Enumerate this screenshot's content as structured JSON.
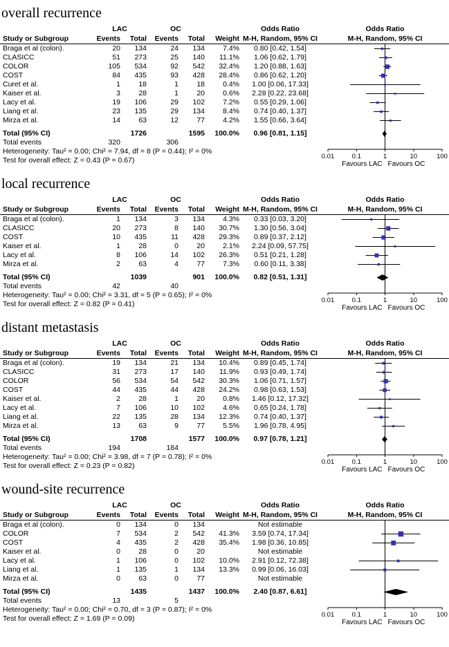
{
  "chart_data": {
    "type": "forest",
    "marker_color": "#3333b2",
    "summary_color": "#000000",
    "labels": {
      "study_or_subgroup": "Study or Subgroup",
      "events": "Events",
      "total": "Total",
      "weight": "Weight",
      "odds_ratio": "Odds Ratio",
      "mh": "M-H, Random, 95% CI",
      "group1": "LAC",
      "group2": "OC",
      "total_ci": "Total (95% CI)",
      "total_events": "Total events"
    },
    "axis": {
      "scale": "log",
      "min": 0.01,
      "max": 100,
      "ticks": [
        "0.01",
        "0.1",
        "1",
        "10",
        "100"
      ],
      "favours_left": "Favours LAC",
      "favours_right": "Favours OC"
    },
    "sections": [
      {
        "title": "overall recurrence",
        "studies": [
          {
            "name": "Braga et al (colon).",
            "e1": 20,
            "t1": 134,
            "e2": 24,
            "t2": 134,
            "weight": "7.4%",
            "ci_text": "0.80 [0.42, 1.54]",
            "or": 0.8,
            "lo": 0.42,
            "hi": 1.54
          },
          {
            "name": "CLASICC",
            "e1": 51,
            "t1": 273,
            "e2": 25,
            "t2": 140,
            "weight": "11.1%",
            "ci_text": "1.06 [0.62, 1.79]",
            "or": 1.06,
            "lo": 0.62,
            "hi": 1.79
          },
          {
            "name": "COLOR",
            "e1": 105,
            "t1": 534,
            "e2": 92,
            "t2": 542,
            "weight": "32.4%",
            "ci_text": "1.20 [0.88, 1.63]",
            "or": 1.2,
            "lo": 0.88,
            "hi": 1.63
          },
          {
            "name": "COST",
            "e1": 84,
            "t1": 435,
            "e2": 93,
            "t2": 428,
            "weight": "28.4%",
            "ci_text": "0.86 [0.62, 1.20]",
            "or": 0.86,
            "lo": 0.62,
            "hi": 1.2
          },
          {
            "name": "Curet et al.",
            "e1": 1,
            "t1": 18,
            "e2": 1,
            "t2": 18,
            "weight": "0.4%",
            "ci_text": "1.00 [0.06, 17.33]",
            "or": 1.0,
            "lo": 0.06,
            "hi": 17.33
          },
          {
            "name": "Kaiser et al.",
            "e1": 3,
            "t1": 28,
            "e2": 1,
            "t2": 20,
            "weight": "0.6%",
            "ci_text": "2.28 [0.22, 23.68]",
            "or": 2.28,
            "lo": 0.22,
            "hi": 23.68
          },
          {
            "name": "Lacy et al.",
            "e1": 19,
            "t1": 106,
            "e2": 29,
            "t2": 102,
            "weight": "7.2%",
            "ci_text": "0.55 [0.29, 1.06]",
            "or": 0.55,
            "lo": 0.29,
            "hi": 1.06
          },
          {
            "name": "Liang et al.",
            "e1": 23,
            "t1": 135,
            "e2": 29,
            "t2": 134,
            "weight": "8.4%",
            "ci_text": "0.74 [0.40, 1.37]",
            "or": 0.74,
            "lo": 0.4,
            "hi": 1.37
          },
          {
            "name": "Mirza et al.",
            "e1": 14,
            "t1": 63,
            "e2": 12,
            "t2": 77,
            "weight": "4.2%",
            "ci_text": "1.55 [0.66, 3.64]",
            "or": 1.55,
            "lo": 0.66,
            "hi": 3.64
          }
        ],
        "total": {
          "t1": 1726,
          "t2": 1595,
          "weight": "100.0%",
          "ci_text": "0.96 [0.81, 1.15]",
          "or": 0.96,
          "lo": 0.81,
          "hi": 1.15
        },
        "total_events": {
          "e1": 320,
          "e2": 306
        },
        "heterogeneity": "Heterogeneity: Tau² = 0.00; Chi² = 7.94, df = 8 (P = 0.44); I² = 0%",
        "effect_test": "Test for overall effect: Z = 0.43 (P = 0.67)"
      },
      {
        "title": "local recurrence",
        "studies": [
          {
            "name": "Braga et al (colon).",
            "e1": 1,
            "t1": 134,
            "e2": 3,
            "t2": 134,
            "weight": "4.3%",
            "ci_text": "0.33 [0.03, 3.20]",
            "or": 0.33,
            "lo": 0.03,
            "hi": 3.2
          },
          {
            "name": "CLASICC",
            "e1": 20,
            "t1": 273,
            "e2": 8,
            "t2": 140,
            "weight": "30.7%",
            "ci_text": "1.30 [0.56, 3.04]",
            "or": 1.3,
            "lo": 0.56,
            "hi": 3.04
          },
          {
            "name": "COST",
            "e1": 10,
            "t1": 435,
            "e2": 11,
            "t2": 428,
            "weight": "29.3%",
            "ci_text": "0.89 [0.37, 2.12]",
            "or": 0.89,
            "lo": 0.37,
            "hi": 2.12
          },
          {
            "name": "Kaiser et al.",
            "e1": 1,
            "t1": 28,
            "e2": 0,
            "t2": 20,
            "weight": "2.1%",
            "ci_text": "2.24 [0.09, 57.75]",
            "or": 2.24,
            "lo": 0.09,
            "hi": 57.75
          },
          {
            "name": "Lacy et al.",
            "e1": 8,
            "t1": 106,
            "e2": 14,
            "t2": 102,
            "weight": "26.3%",
            "ci_text": "0.51 [0.21, 1.28]",
            "or": 0.51,
            "lo": 0.21,
            "hi": 1.28
          },
          {
            "name": "Mirza et al.",
            "e1": 2,
            "t1": 63,
            "e2": 4,
            "t2": 77,
            "weight": "7.3%",
            "ci_text": "0.60 [0.11, 3.38]",
            "or": 0.6,
            "lo": 0.11,
            "hi": 3.38
          }
        ],
        "total": {
          "t1": 1039,
          "t2": 901,
          "weight": "100.0%",
          "ci_text": "0.82 [0.51, 1.31]",
          "or": 0.82,
          "lo": 0.51,
          "hi": 1.31
        },
        "total_events": {
          "e1": 42,
          "e2": 40
        },
        "heterogeneity": "Heterogeneity: Tau² = 0.00; Chi² = 3.31, df = 5 (P = 0.65); I² = 0%",
        "effect_test": "Test for overall effect: Z = 0.82 (P = 0.41)"
      },
      {
        "title": "distant metastasis",
        "studies": [
          {
            "name": "Braga et al (colon).",
            "e1": 19,
            "t1": 134,
            "e2": 21,
            "t2": 134,
            "weight": "10.4%",
            "ci_text": "0.89 [0.45, 1.74]",
            "or": 0.89,
            "lo": 0.45,
            "hi": 1.74
          },
          {
            "name": "CLASICC",
            "e1": 31,
            "t1": 273,
            "e2": 17,
            "t2": 140,
            "weight": "11.9%",
            "ci_text": "0.93 [0.49, 1.74]",
            "or": 0.93,
            "lo": 0.49,
            "hi": 1.74
          },
          {
            "name": "COLOR",
            "e1": 56,
            "t1": 534,
            "e2": 54,
            "t2": 542,
            "weight": "30.3%",
            "ci_text": "1.06 [0.71, 1.57]",
            "or": 1.06,
            "lo": 0.71,
            "hi": 1.57
          },
          {
            "name": "COST",
            "e1": 44,
            "t1": 435,
            "e2": 44,
            "t2": 428,
            "weight": "24.2%",
            "ci_text": "0.98 [0.63, 1.53]",
            "or": 0.98,
            "lo": 0.63,
            "hi": 1.53
          },
          {
            "name": "Kaiser et al.",
            "e1": 2,
            "t1": 28,
            "e2": 1,
            "t2": 20,
            "weight": "0.8%",
            "ci_text": "1.46 [0.12, 17.32]",
            "or": 1.46,
            "lo": 0.12,
            "hi": 17.32
          },
          {
            "name": "Lacy et al.",
            "e1": 7,
            "t1": 106,
            "e2": 10,
            "t2": 102,
            "weight": "4.6%",
            "ci_text": "0.65 [0.24, 1.78]",
            "or": 0.65,
            "lo": 0.24,
            "hi": 1.78
          },
          {
            "name": "Liang et al.",
            "e1": 22,
            "t1": 135,
            "e2": 28,
            "t2": 134,
            "weight": "12.3%",
            "ci_text": "0.74 [0.40, 1.37]",
            "or": 0.74,
            "lo": 0.4,
            "hi": 1.37
          },
          {
            "name": "Mirza et al.",
            "e1": 13,
            "t1": 63,
            "e2": 9,
            "t2": 77,
            "weight": "5.5%",
            "ci_text": "1.96 [0.78, 4.95]",
            "or": 1.96,
            "lo": 0.78,
            "hi": 4.95
          }
        ],
        "total": {
          "t1": 1708,
          "t2": 1577,
          "weight": "100.0%",
          "ci_text": "0.97 [0.78, 1.21]",
          "or": 0.97,
          "lo": 0.78,
          "hi": 1.21
        },
        "total_events": {
          "e1": 194,
          "e2": 184
        },
        "heterogeneity": "Heterogeneity: Tau² = 0.00; Chi² = 3.98, df = 7 (P = 0.78); I² = 0%",
        "effect_test": "Test for overall effect: Z = 0.23 (P = 0.82)"
      },
      {
        "title": "wound-site recurrence",
        "studies": [
          {
            "name": "Braga et al (colon).",
            "e1": 0,
            "t1": 134,
            "e2": 0,
            "t2": 134,
            "weight": "",
            "ci_text": "Not estimable",
            "or": null,
            "lo": null,
            "hi": null
          },
          {
            "name": "COLOR",
            "e1": 7,
            "t1": 534,
            "e2": 2,
            "t2": 542,
            "weight": "41.3%",
            "ci_text": "3.59 [0.74, 17.34]",
            "or": 3.59,
            "lo": 0.74,
            "hi": 17.34
          },
          {
            "name": "COST",
            "e1": 4,
            "t1": 435,
            "e2": 2,
            "t2": 428,
            "weight": "35.4%",
            "ci_text": "1.98 [0.36, 10.85]",
            "or": 1.98,
            "lo": 0.36,
            "hi": 10.85
          },
          {
            "name": "Kaiser et al.",
            "e1": 0,
            "t1": 28,
            "e2": 0,
            "t2": 20,
            "weight": "",
            "ci_text": "Not estimable",
            "or": null,
            "lo": null,
            "hi": null
          },
          {
            "name": "Lacy et al.",
            "e1": 1,
            "t1": 106,
            "e2": 0,
            "t2": 102,
            "weight": "10.0%",
            "ci_text": "2.91 [0.12, 72.38]",
            "or": 2.91,
            "lo": 0.12,
            "hi": 72.38
          },
          {
            "name": "Liang et al.",
            "e1": 1,
            "t1": 135,
            "e2": 1,
            "t2": 134,
            "weight": "13.3%",
            "ci_text": "0.99 [0.06, 16.03]",
            "or": 0.99,
            "lo": 0.06,
            "hi": 16.03
          },
          {
            "name": "Mirza et al.",
            "e1": 0,
            "t1": 63,
            "e2": 0,
            "t2": 77,
            "weight": "",
            "ci_text": "Not estimable",
            "or": null,
            "lo": null,
            "hi": null
          }
        ],
        "total": {
          "t1": 1435,
          "t2": 1437,
          "weight": "100.0%",
          "ci_text": "2.40 [0.87, 6.61]",
          "or": 2.4,
          "lo": 0.87,
          "hi": 6.61
        },
        "total_events": {
          "e1": 13,
          "e2": 5
        },
        "heterogeneity": "Heterogeneity: Tau² = 0.00; Chi² = 0.70, df = 3 (P = 0.87); I² = 0%",
        "effect_test": "Test for overall effect: Z = 1.69 (P = 0.09)"
      }
    ]
  }
}
